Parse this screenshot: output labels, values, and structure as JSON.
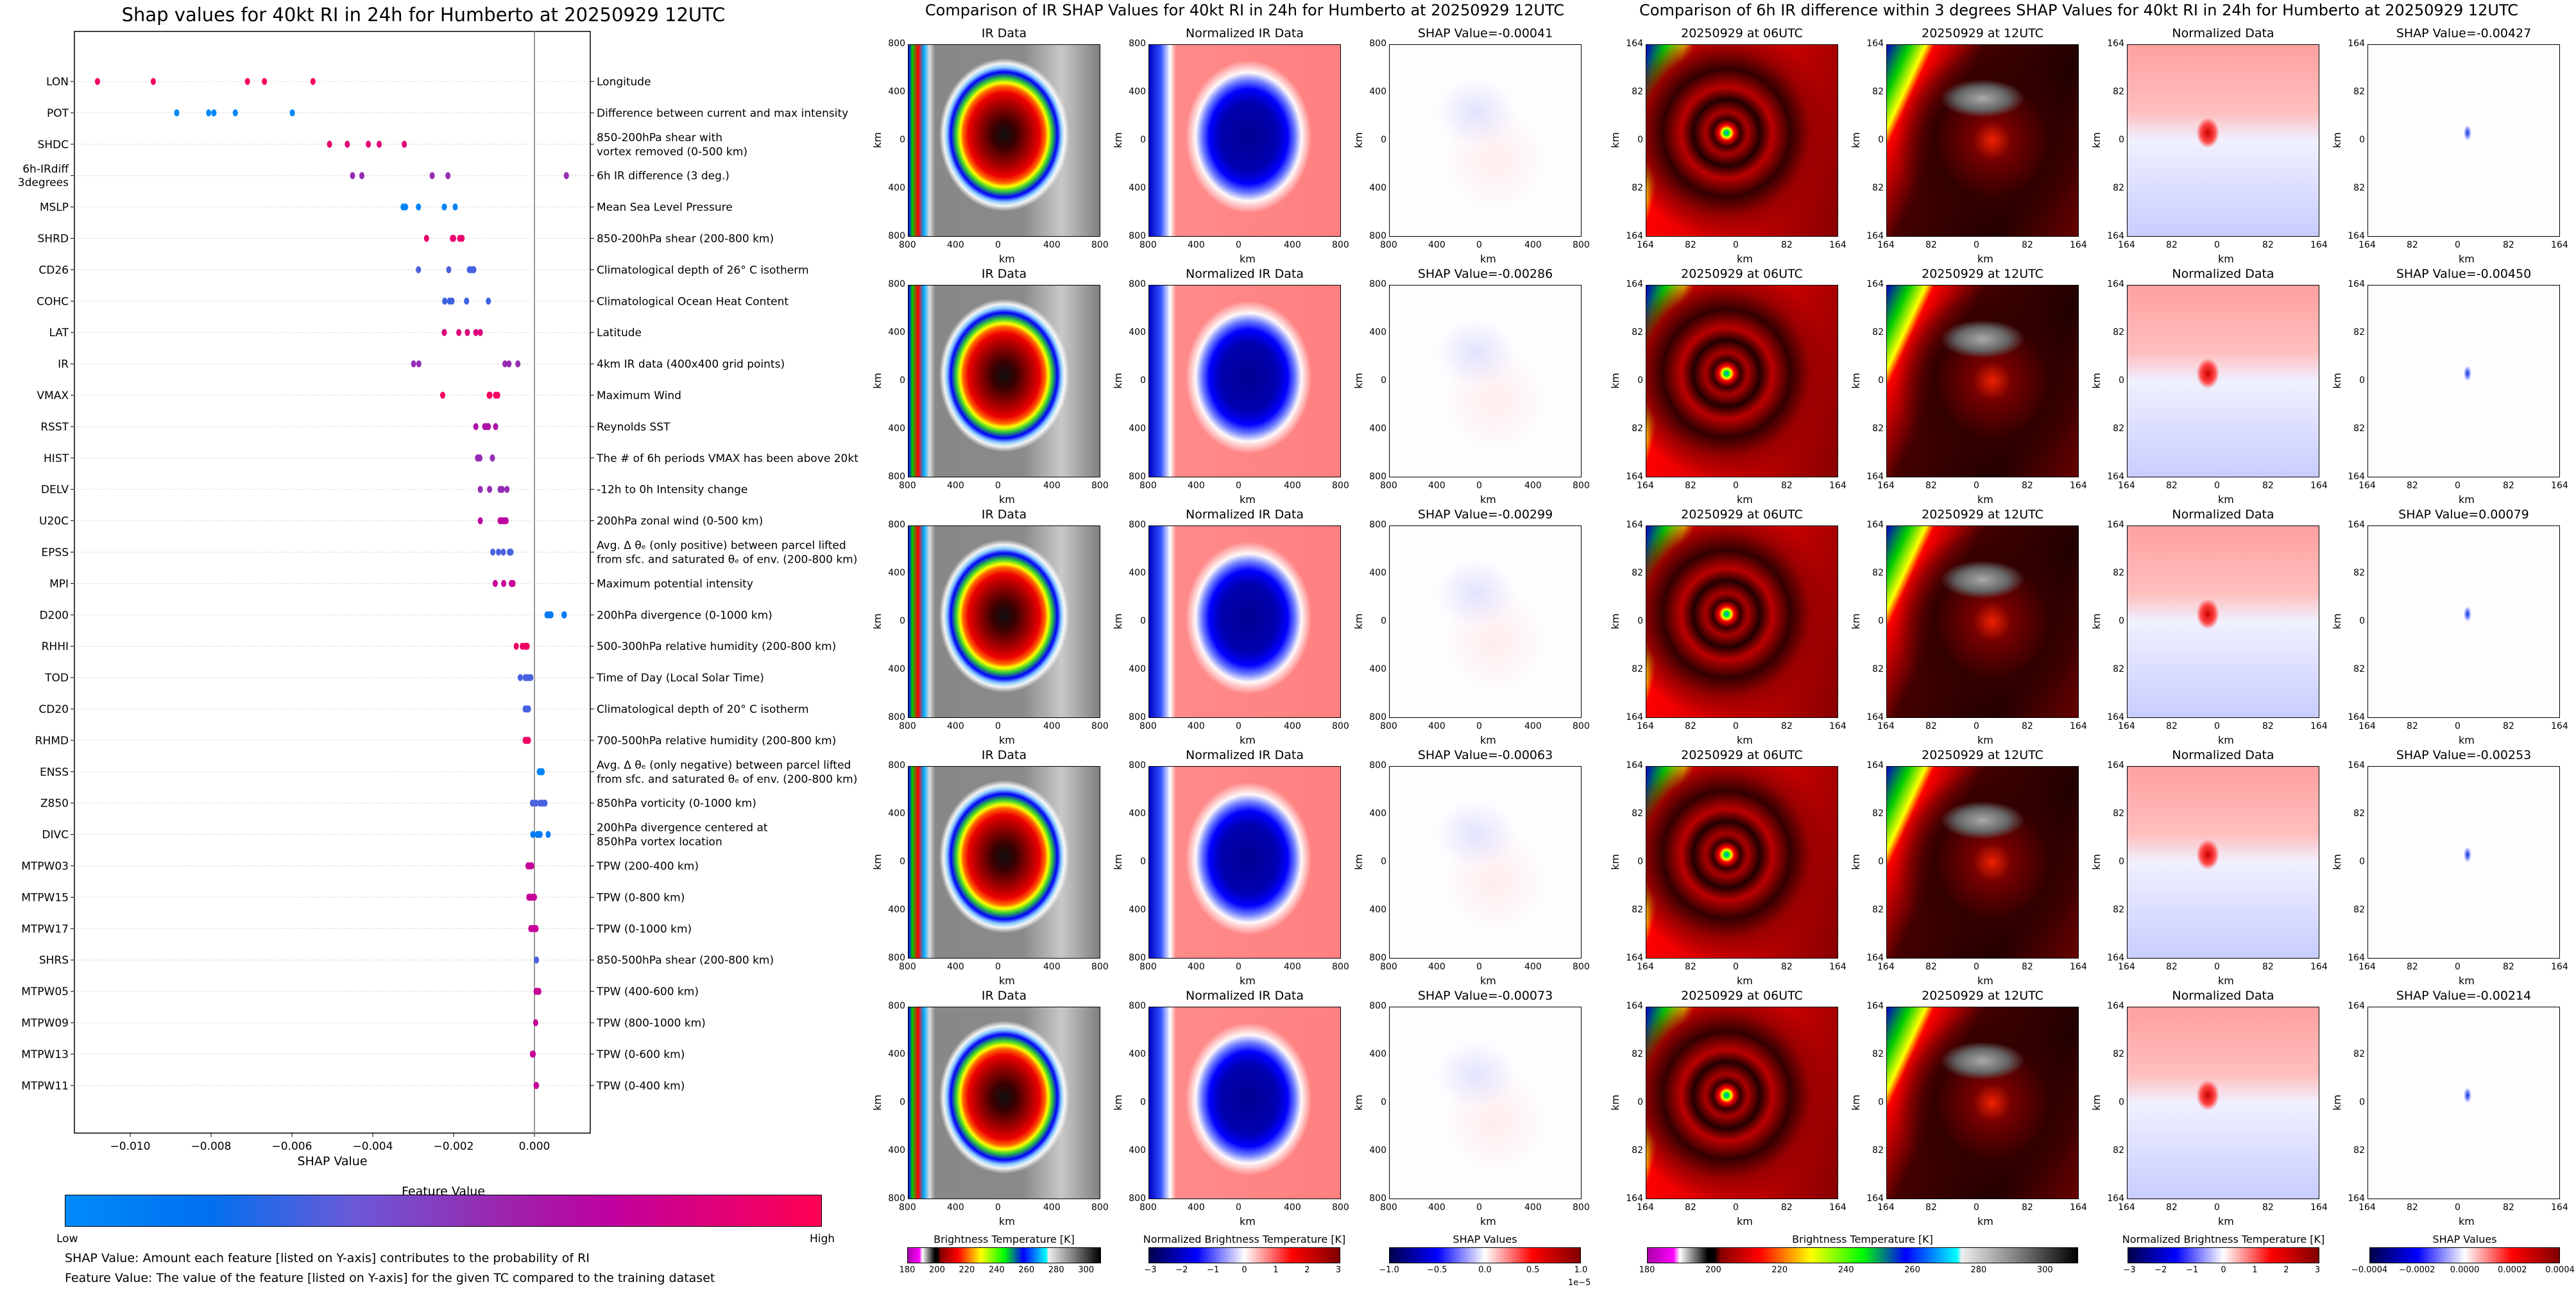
{
  "chart_data": [
    {
      "type": "scatter",
      "title": "Shap values for 40kt RI in 24h for Humberto at 20250929 12UTC",
      "xlabel": "SHAP Value",
      "xlim": [
        -0.01138,
        0.00138
      ],
      "xticks": [
        "−0.010",
        "−0.008",
        "−0.006",
        "−0.004",
        "−0.002",
        "0.000"
      ],
      "xtick_values": [
        -0.01,
        -0.008,
        -0.006,
        -0.004,
        -0.002,
        0.0
      ],
      "zero_line": true,
      "grid": "dotted horizontal per feature",
      "colorbar": {
        "title": "Feature Value",
        "low": "Low",
        "high": "High",
        "colors": [
          "#008bfb",
          "#0070ef",
          "#6a5ad8",
          "#a020a8",
          "#c0009f",
          "#ff0052"
        ]
      },
      "features": [
        {
          "name": "LON",
          "desc": "Longitude",
          "fv": 0.95,
          "values": [
            -0.01081,
            -0.00943,
            -0.0071,
            -0.00668,
            -0.00548
          ]
        },
        {
          "name": "POT",
          "desc": "Difference between current and max intensity",
          "fv": 0.03,
          "values": [
            -0.00885,
            -0.00806,
            -0.00793,
            -0.0074,
            -0.00599
          ]
        },
        {
          "name": "SHDC",
          "desc": "850-200hPa shear with\nvortex removed (0-500 km)",
          "fv": 0.88,
          "values": [
            -0.00507,
            -0.00463,
            -0.00411,
            -0.00384,
            -0.00322
          ]
        },
        {
          "name": "6h-IRdiff\n3degrees",
          "desc": "6h IR difference (3 deg.)",
          "fv": 0.55,
          "values": [
            -0.0045,
            -0.00427,
            -0.00253,
            -0.00214,
            0.00079
          ]
        },
        {
          "name": "MSLP",
          "desc": "Mean Sea Level Pressure",
          "fv": 0.05,
          "values": [
            -0.00325,
            -0.00319,
            -0.00287,
            -0.00223,
            -0.00196
          ]
        },
        {
          "name": "SHRD",
          "desc": "850-200hPa shear (200-800 km)",
          "fv": 0.9,
          "values": [
            -0.00267,
            -0.00203,
            -0.002,
            -0.00185,
            -0.00179
          ]
        },
        {
          "name": "CD26",
          "desc": "Climatological depth of 26° C isotherm",
          "fv": 0.32,
          "values": [
            -0.00287,
            -0.00212,
            -0.00161,
            -0.00155,
            -0.0015
          ]
        },
        {
          "name": "COHC",
          "desc": "Climatological Ocean Heat Content",
          "fv": 0.3,
          "values": [
            -0.00222,
            -0.0021,
            -0.00204,
            -0.00168,
            -0.00114
          ]
        },
        {
          "name": "LAT",
          "desc": "Latitude",
          "fv": 0.85,
          "values": [
            -0.00223,
            -0.00187,
            -0.00166,
            -0.00145,
            -0.00134
          ]
        },
        {
          "name": "IR",
          "desc": "4km IR data (400x400 grid points)",
          "fv": 0.55,
          "values": [
            -0.00299,
            -0.00286,
            -0.00073,
            -0.00063,
            -0.00041
          ]
        },
        {
          "name": "VMAX",
          "desc": "Maximum Wind",
          "fv": 0.95,
          "values": [
            -0.00227,
            -0.00112,
            -0.0011,
            -0.00096,
            -0.00091
          ]
        },
        {
          "name": "RSST",
          "desc": "Reynolds SST",
          "fv": 0.65,
          "values": [
            -0.00145,
            -0.00123,
            -0.00118,
            -0.00114,
            -0.00096
          ]
        },
        {
          "name": "HIST",
          "desc": "The # of 6h periods VMAX has been above 20kt",
          "fv": 0.55,
          "values": [
            -0.00141,
            -0.00138,
            -0.00135,
            -0.00104,
            -0.00104
          ]
        },
        {
          "name": "DELV",
          "desc": "-12h to 0h Intensity change",
          "fv": 0.55,
          "values": [
            -0.00134,
            -0.00111,
            -0.00085,
            -0.0008,
            -0.00068
          ]
        },
        {
          "name": "U20C",
          "desc": "200hPa zonal wind (0-500 km)",
          "fv": 0.7,
          "values": [
            -0.00134,
            -0.00085,
            -0.0008,
            -0.00074,
            -0.0007
          ]
        },
        {
          "name": "EPSS",
          "desc": "Avg. Δ θₑ (only positive) between parcel lifted\nfrom sfc. and saturated θₑ of env. (200-800 km)",
          "fv": 0.32,
          "values": [
            -0.00103,
            -0.00089,
            -0.00077,
            -0.00062,
            -0.00058
          ]
        },
        {
          "name": "MPI",
          "desc": "Maximum potential intensity",
          "fv": 0.75,
          "values": [
            -0.00097,
            -0.00076,
            -0.00057,
            -0.00055,
            -0.00053
          ]
        },
        {
          "name": "D200",
          "desc": "200hPa divergence (0-1000 km)",
          "fv": 0.12,
          "values": [
            0.00031,
            0.00036,
            0.00041,
            0.00073,
            0.00074
          ]
        },
        {
          "name": "RHHI",
          "desc": "500-300hPa relative humidity (200-800 km)",
          "fv": 0.93,
          "values": [
            -0.00045,
            -0.0003,
            -0.00023,
            -0.0002,
            -0.00018
          ]
        },
        {
          "name": "TOD",
          "desc": "Time of Day (Local Solar Time)",
          "fv": 0.32,
          "values": [
            -0.00035,
            -0.00023,
            -0.00019,
            -0.00015,
            -9e-05
          ]
        },
        {
          "name": "CD20",
          "desc": "Climatological depth of 20° C isotherm",
          "fv": 0.32,
          "values": [
            -0.00023,
            -0.0002,
            -0.00018,
            -0.00015,
            -0.00015
          ]
        },
        {
          "name": "RHMD",
          "desc": "700-500hPa relative humidity (200-800 km)",
          "fv": 0.93,
          "values": [
            -0.00023,
            -0.0002,
            -0.00018,
            -0.00015,
            -0.00015
          ]
        },
        {
          "name": "ENSS",
          "desc": "Avg. Δ θₑ (only negative) between parcel lifted\nfrom sfc. and saturated θₑ of env. (200-800 km)",
          "fv": 0.05,
          "values": [
            0.00012,
            0.00014,
            0.00016,
            0.00019,
            0.00019
          ]
        },
        {
          "name": "Z850",
          "desc": "850hPa vorticity (0-1000 km)",
          "fv": 0.32,
          "values": [
            -5e-05,
            4e-05,
            0.00014,
            0.0002,
            0.00026
          ]
        },
        {
          "name": "DIVC",
          "desc": "200hPa divergence centered at\n850hPa vortex location",
          "fv": 0.1,
          "values": [
            -4e-05,
            7e-05,
            0.0001,
            0.00014,
            0.00034
          ]
        },
        {
          "name": "MTPW03",
          "desc": "TPW (200-400 km)",
          "fv": 0.75,
          "values": [
            -0.00016,
            -0.00012,
            -0.0001,
            -7e-05,
            -7e-05
          ]
        },
        {
          "name": "MTPW15",
          "desc": "TPW (0-800 km)",
          "fv": 0.75,
          "values": [
            -0.00014,
            -0.0001,
            -6e-05,
            -2e-05,
            0.0
          ]
        },
        {
          "name": "MTPW17",
          "desc": "TPW (0-1000 km)",
          "fv": 0.75,
          "values": [
            -9e-05,
            -5e-05,
            0.0,
            3e-05,
            4e-05
          ]
        },
        {
          "name": "SHRS",
          "desc": "850-500hPa shear (200-800 km)",
          "fv": 0.32,
          "values": [
            5e-05
          ]
        },
        {
          "name": "MTPW05",
          "desc": "TPW (400-600 km)",
          "fv": 0.75,
          "values": [
            4e-05,
            7e-05,
            9e-05,
            0.00011
          ]
        },
        {
          "name": "MTPW09",
          "desc": "TPW (800-1000 km)",
          "fv": 0.75,
          "values": [
            3e-05
          ]
        },
        {
          "name": "MTPW13",
          "desc": "TPW (0-600 km)",
          "fv": 0.75,
          "values": [
            -5e-05,
            -3e-05
          ]
        },
        {
          "name": "MTPW11",
          "desc": "TPW (0-400 km)",
          "fv": 0.75,
          "values": [
            4e-05,
            5e-05
          ]
        }
      ]
    }
  ],
  "left_footer": {
    "line1": "SHAP Value: Amount each feature [listed on Y-axis] contributes to the probability of RI",
    "line2": "Feature Value: The value of the feature [listed on Y-axis] for the given TC compared to the training dataset"
  },
  "ir_section": {
    "title": "Comparison of IR SHAP Values for 40kt RI in 24h for Humberto at 20250929 12UTC",
    "col_titles": [
      "IR Data",
      "Normalized IR Data"
    ],
    "shap_prefix": "SHAP Value=",
    "row_shap_values": [
      "-0.00041",
      "-0.00286",
      "-0.00299",
      "-0.00063",
      "-0.00073"
    ],
    "axis_ticks": [
      "800",
      "400",
      "0",
      "400",
      "800"
    ],
    "axis_label": "km",
    "colorbars": [
      {
        "title": "Brightness Temperature [K]",
        "ticks": [
          "180",
          "200",
          "220",
          "240",
          "260",
          "280",
          "300"
        ],
        "range": [
          180,
          310
        ],
        "cmap": "ir"
      },
      {
        "title": "Normalized Brightness Temperature [K]",
        "ticks": [
          "−3",
          "−2",
          "−1",
          "0",
          "1",
          "2",
          "3"
        ],
        "range": [
          -3.06,
          3.06
        ],
        "cmap": "seismic"
      },
      {
        "title": "SHAP Values",
        "ticks": [
          "−1.0",
          "−0.5",
          "0.0",
          "0.5",
          "1.0"
        ],
        "range": [
          -1.0,
          1.0
        ],
        "cmap": "seismic",
        "offset": "1e−5"
      }
    ]
  },
  "irdiff_section": {
    "title": "Comparison of 6h IR difference within 3 degrees SHAP Values for 40kt RI in 24h for Humberto at 20250929 12UTC",
    "col_titles": [
      "20250929 at 06UTC",
      "20250929 at 12UTC",
      "Normalized Data"
    ],
    "shap_prefix": "SHAP Value=",
    "row_shap_values": [
      "-0.00427",
      "-0.00450",
      "0.00079",
      "-0.00253",
      "-0.00214"
    ],
    "axis_ticks": [
      "164",
      "82",
      "0",
      "82",
      "164"
    ],
    "axis_label": "km",
    "colorbars": [
      {
        "title": "Brightness Temperature [K]",
        "ticks": [
          "180",
          "200",
          "220",
          "240",
          "260",
          "280",
          "300"
        ],
        "range": [
          180,
          310
        ],
        "cmap": "ir"
      },
      {
        "title": "Normalized Brightness Temperature [K]",
        "ticks": [
          "−3",
          "−2",
          "−1",
          "0",
          "1",
          "2",
          "3"
        ],
        "range": [
          -3.06,
          3.06
        ],
        "cmap": "seismic"
      },
      {
        "title": "SHAP Values",
        "ticks": [
          "−0.0004",
          "−0.0002",
          "0.0000",
          "0.0002",
          "0.0004"
        ],
        "range": [
          -0.0004,
          0.0004
        ],
        "cmap": "seismic"
      }
    ]
  }
}
